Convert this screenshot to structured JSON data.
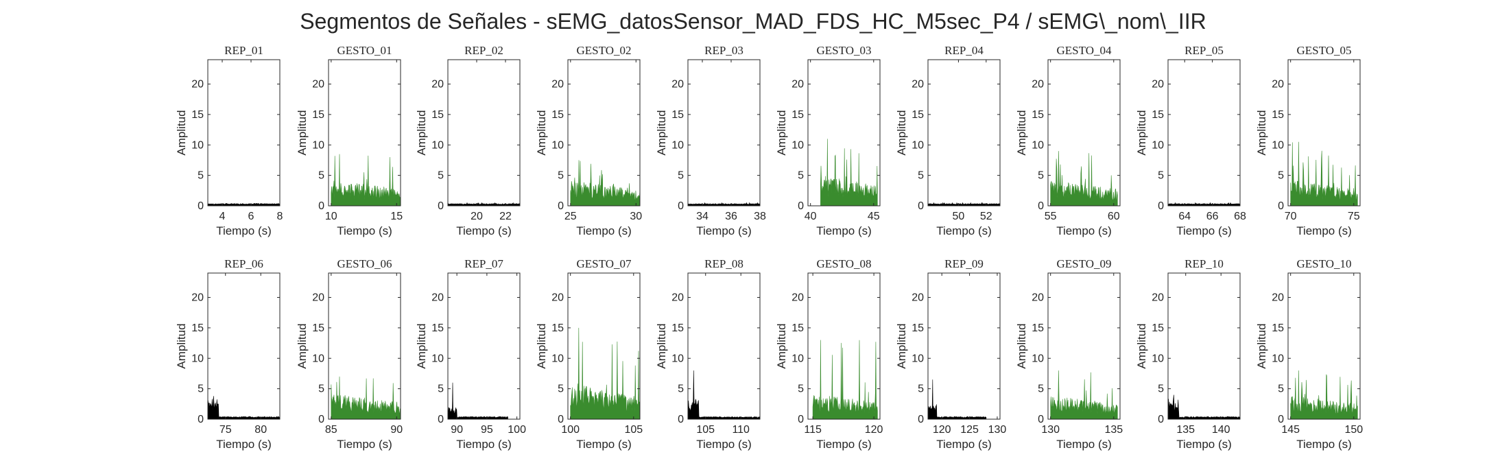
{
  "figure_title": "Segmentos de Señales - sEMG_datosSensor_MAD_FDS_HC_M5sec_P4 / sEMG\\_nom\\_IIR",
  "colors": {
    "rep": "#000000",
    "gesto": "#3a8c2e",
    "axis": "#262626"
  },
  "chart_data": [
    {
      "type": "area",
      "title": "REP_01",
      "kind": "rep",
      "xlabel": "Tiempo (s)",
      "ylabel": "Amplitud",
      "xlim": [
        3,
        8
      ],
      "ylim": [
        0,
        24
      ],
      "xticks": [
        4,
        6,
        8
      ],
      "yticks": [
        0,
        5,
        10,
        15,
        20
      ],
      "grid": false,
      "signal": {
        "x_start": 3,
        "x_end": 8,
        "base": 0.3,
        "peak": 0.4,
        "burst": 0
      }
    },
    {
      "type": "area",
      "title": "GESTO_01",
      "kind": "gesto",
      "xlabel": "Tiempo (s)",
      "ylabel": "Amplitud",
      "xlim": [
        9.8,
        15.3
      ],
      "ylim": [
        0,
        24
      ],
      "xticks": [
        10,
        15
      ],
      "yticks": [
        0,
        5,
        10,
        15,
        20
      ],
      "grid": false,
      "signal": {
        "x_start": 10,
        "x_end": 15.3,
        "base": 2.5,
        "peak": 8.5,
        "burst": 0
      }
    },
    {
      "type": "area",
      "title": "REP_02",
      "kind": "rep",
      "xlabel": "Tiempo (s)",
      "ylabel": "Amplitud",
      "xlim": [
        18,
        23
      ],
      "ylim": [
        0,
        24
      ],
      "xticks": [
        20,
        22
      ],
      "yticks": [
        0,
        5,
        10,
        15,
        20
      ],
      "grid": false,
      "signal": {
        "x_start": 18,
        "x_end": 23,
        "base": 0.3,
        "peak": 0.5,
        "burst": 0
      }
    },
    {
      "type": "area",
      "title": "GESTO_02",
      "kind": "gesto",
      "xlabel": "Tiempo (s)",
      "ylabel": "Amplitud",
      "xlim": [
        24.8,
        30.3
      ],
      "ylim": [
        0,
        24
      ],
      "xticks": [
        25,
        30
      ],
      "yticks": [
        0,
        5,
        10,
        15,
        20
      ],
      "grid": false,
      "signal": {
        "x_start": 25,
        "x_end": 30.3,
        "base": 2.5,
        "peak": 7.5,
        "burst": 0
      }
    },
    {
      "type": "area",
      "title": "REP_03",
      "kind": "rep",
      "xlabel": "Tiempo (s)",
      "ylabel": "Amplitud",
      "xlim": [
        33,
        38
      ],
      "ylim": [
        0,
        24
      ],
      "xticks": [
        34,
        36,
        38
      ],
      "yticks": [
        0,
        5,
        10,
        15,
        20
      ],
      "grid": false,
      "signal": {
        "x_start": 33,
        "x_end": 38,
        "base": 0.3,
        "peak": 0.5,
        "burst": 0
      }
    },
    {
      "type": "area",
      "title": "GESTO_03",
      "kind": "gesto",
      "xlabel": "Tiempo (s)",
      "ylabel": "Amplitud",
      "xlim": [
        39.8,
        45.5
      ],
      "ylim": [
        0,
        24
      ],
      "xticks": [
        40,
        45
      ],
      "yticks": [
        0,
        5,
        10,
        15,
        20
      ],
      "grid": false,
      "signal": {
        "x_start": 40.8,
        "x_end": 45.3,
        "base": 3,
        "peak": 11,
        "burst": 0
      }
    },
    {
      "type": "area",
      "title": "REP_04",
      "kind": "rep",
      "xlabel": "Tiempo (s)",
      "ylabel": "Amplitud",
      "xlim": [
        47.8,
        53
      ],
      "ylim": [
        0,
        24
      ],
      "xticks": [
        50,
        52
      ],
      "yticks": [
        0,
        5,
        10,
        15,
        20
      ],
      "grid": false,
      "signal": {
        "x_start": 47.8,
        "x_end": 53,
        "base": 0.3,
        "peak": 0.5,
        "burst": 0
      }
    },
    {
      "type": "area",
      "title": "GESTO_04",
      "kind": "gesto",
      "xlabel": "Tiempo (s)",
      "ylabel": "Amplitud",
      "xlim": [
        54.8,
        60.5
      ],
      "ylim": [
        0,
        24
      ],
      "xticks": [
        55,
        60
      ],
      "yticks": [
        0,
        5,
        10,
        15,
        20
      ],
      "grid": false,
      "signal": {
        "x_start": 55,
        "x_end": 60.3,
        "base": 2.5,
        "peak": 9,
        "burst": 0
      }
    },
    {
      "type": "area",
      "title": "REP_05",
      "kind": "rep",
      "xlabel": "Tiempo (s)",
      "ylabel": "Amplitud",
      "xlim": [
        62.8,
        68
      ],
      "ylim": [
        0,
        24
      ],
      "xticks": [
        64,
        66,
        68
      ],
      "yticks": [
        0,
        5,
        10,
        15,
        20
      ],
      "grid": false,
      "signal": {
        "x_start": 62.8,
        "x_end": 68,
        "base": 0.3,
        "peak": 0.5,
        "burst": 0
      }
    },
    {
      "type": "area",
      "title": "GESTO_05",
      "kind": "gesto",
      "xlabel": "Tiempo (s)",
      "ylabel": "Amplitud",
      "xlim": [
        69.8,
        75.5
      ],
      "ylim": [
        0,
        24
      ],
      "xticks": [
        70,
        75
      ],
      "yticks": [
        0,
        5,
        10,
        15,
        20
      ],
      "grid": false,
      "signal": {
        "x_start": 70,
        "x_end": 75.3,
        "base": 2.5,
        "peak": 10.5,
        "burst": 0
      }
    },
    {
      "type": "area",
      "title": "REP_06",
      "kind": "rep",
      "xlabel": "Tiempo (s)",
      "ylabel": "Amplitud",
      "xlim": [
        72.5,
        82.7
      ],
      "ylim": [
        0,
        24
      ],
      "xticks": [
        75,
        80
      ],
      "yticks": [
        0,
        5,
        10,
        15,
        20
      ],
      "grid": false,
      "signal": {
        "x_start": 72.5,
        "x_end": 82.7,
        "base": 0.4,
        "peak": 3.8,
        "burst": 3.5
      }
    },
    {
      "type": "area",
      "title": "GESTO_06",
      "kind": "gesto",
      "xlabel": "Tiempo (s)",
      "ylabel": "Amplitud",
      "xlim": [
        84.8,
        90.3
      ],
      "ylim": [
        0,
        24
      ],
      "xticks": [
        85,
        90
      ],
      "yticks": [
        0,
        5,
        10,
        15,
        20
      ],
      "grid": false,
      "signal": {
        "x_start": 85,
        "x_end": 90.3,
        "base": 2.5,
        "peak": 7,
        "burst": 0
      }
    },
    {
      "type": "area",
      "title": "REP_07",
      "kind": "rep",
      "xlabel": "Tiempo (s)",
      "ylabel": "Amplitud",
      "xlim": [
        88.5,
        100.5
      ],
      "ylim": [
        0,
        24
      ],
      "xticks": [
        90,
        95,
        100
      ],
      "yticks": [
        0,
        5,
        10,
        15,
        20
      ],
      "grid": false,
      "signal": {
        "x_start": 88.5,
        "x_end": 98.5,
        "base": 0.4,
        "peak": 6,
        "burst": 2
      }
    },
    {
      "type": "area",
      "title": "GESTO_07",
      "kind": "gesto",
      "xlabel": "Tiempo (s)",
      "ylabel": "Amplitud",
      "xlim": [
        99.8,
        105.5
      ],
      "ylim": [
        0,
        24
      ],
      "xticks": [
        100,
        105
      ],
      "yticks": [
        0,
        5,
        10,
        15,
        20
      ],
      "grid": false,
      "signal": {
        "x_start": 100,
        "x_end": 105.5,
        "base": 3.5,
        "peak": 15,
        "burst": 0
      }
    },
    {
      "type": "area",
      "title": "REP_08",
      "kind": "rep",
      "xlabel": "Tiempo (s)",
      "ylabel": "Amplitud",
      "xlim": [
        102.5,
        112.7
      ],
      "ylim": [
        0,
        24
      ],
      "xticks": [
        105,
        110
      ],
      "yticks": [
        0,
        5,
        10,
        15,
        20
      ],
      "grid": false,
      "signal": {
        "x_start": 102.5,
        "x_end": 112.7,
        "base": 0.4,
        "peak": 8,
        "burst": 3.5
      }
    },
    {
      "type": "area",
      "title": "GESTO_08",
      "kind": "gesto",
      "xlabel": "Tiempo (s)",
      "ylabel": "Amplitud",
      "xlim": [
        114.6,
        120.5
      ],
      "ylim": [
        0,
        24
      ],
      "xticks": [
        115,
        120
      ],
      "yticks": [
        0,
        5,
        10,
        15,
        20
      ],
      "grid": false,
      "signal": {
        "x_start": 115,
        "x_end": 120.3,
        "base": 2.5,
        "peak": 13,
        "burst": 0
      }
    },
    {
      "type": "area",
      "title": "REP_09",
      "kind": "rep",
      "xlabel": "Tiempo (s)",
      "ylabel": "Amplitud",
      "xlim": [
        117.5,
        130.5
      ],
      "ylim": [
        0,
        24
      ],
      "xticks": [
        120,
        125,
        130
      ],
      "yticks": [
        0,
        5,
        10,
        15,
        20
      ],
      "grid": false,
      "signal": {
        "x_start": 117.5,
        "x_end": 128,
        "base": 0.4,
        "peak": 6.5,
        "burst": 2.5
      }
    },
    {
      "type": "area",
      "title": "GESTO_09",
      "kind": "gesto",
      "xlabel": "Tiempo (s)",
      "ylabel": "Amplitud",
      "xlim": [
        129.8,
        135.5
      ],
      "ylim": [
        0,
        24
      ],
      "xticks": [
        130,
        135
      ],
      "yticks": [
        0,
        5,
        10,
        15,
        20
      ],
      "grid": false,
      "signal": {
        "x_start": 130,
        "x_end": 135.3,
        "base": 2.3,
        "peak": 8,
        "burst": 0
      }
    },
    {
      "type": "area",
      "title": "REP_10",
      "kind": "rep",
      "xlabel": "Tiempo (s)",
      "ylabel": "Amplitud",
      "xlim": [
        132.5,
        142.7
      ],
      "ylim": [
        0,
        24
      ],
      "xticks": [
        135,
        140
      ],
      "yticks": [
        0,
        5,
        10,
        15,
        20
      ],
      "grid": false,
      "signal": {
        "x_start": 132.5,
        "x_end": 142.7,
        "base": 0.4,
        "peak": 4,
        "burst": 3.5
      }
    },
    {
      "type": "area",
      "title": "GESTO_10",
      "kind": "gesto",
      "xlabel": "Tiempo (s)",
      "ylabel": "Amplitud",
      "xlim": [
        144.8,
        150.5
      ],
      "ylim": [
        0,
        24
      ],
      "xticks": [
        145,
        150
      ],
      "yticks": [
        0,
        5,
        10,
        15,
        20
      ],
      "grid": false,
      "signal": {
        "x_start": 145,
        "x_end": 150.3,
        "base": 2.3,
        "peak": 8,
        "burst": 0
      }
    }
  ]
}
